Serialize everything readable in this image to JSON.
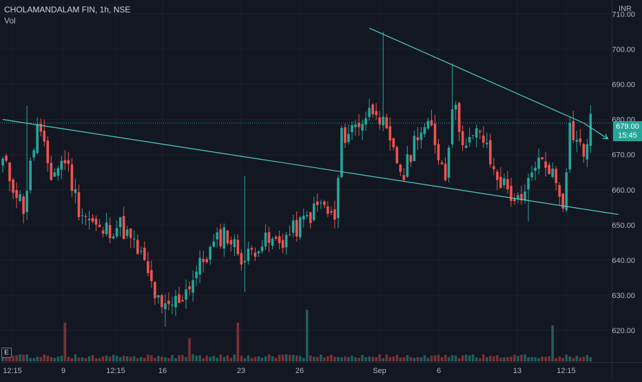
{
  "legend": {
    "symbol": "CHOLAMANDALAM FIN, 1h, NSE",
    "volume_label": "Vol"
  },
  "currency": "INR",
  "axis_icon": "E",
  "last_price": {
    "price": "679.00",
    "countdown": "15:45"
  },
  "colors": {
    "background": "#131722",
    "up": "#26a69a",
    "down": "#ef5350",
    "up_volume": "#1f5e5b",
    "down_volume": "#7a3134",
    "trendline": "#4dd0c7",
    "grid": "#1e222d",
    "axis_text": "#b2b5be"
  },
  "chart_data": {
    "type": "candlestick",
    "title": "CHOLAMANDALAM FIN, 1h, NSE",
    "y_axis": {
      "label": "INR",
      "range": [
        611,
        714
      ],
      "ticks": [
        "620.00",
        "630.00",
        "640.00",
        "650.00",
        "660.00",
        "670.00",
        "680.00",
        "690.00",
        "700.00",
        "710.00"
      ],
      "side": "right"
    },
    "x_axis": {
      "tick_labels": [
        "12:15",
        "9",
        "12:15",
        "16",
        "23",
        "26",
        "Sep",
        "6",
        "13",
        "12:15"
      ]
    },
    "grid": true,
    "series": [
      {
        "name": "price",
        "waypoints": [
          {
            "bar": 0,
            "price": 668
          },
          {
            "bar": 6,
            "price": 655
          },
          {
            "bar": 10,
            "price": 678
          },
          {
            "bar": 14,
            "price": 664
          },
          {
            "bar": 18,
            "price": 669
          },
          {
            "bar": 22,
            "price": 655
          },
          {
            "bar": 28,
            "price": 648
          },
          {
            "bar": 34,
            "price": 650
          },
          {
            "bar": 40,
            "price": 641
          },
          {
            "bar": 46,
            "price": 625
          },
          {
            "bar": 52,
            "price": 630
          },
          {
            "bar": 58,
            "price": 640
          },
          {
            "bar": 64,
            "price": 648
          },
          {
            "bar": 70,
            "price": 640
          },
          {
            "bar": 74,
            "price": 645
          },
          {
            "bar": 80,
            "price": 645
          },
          {
            "bar": 86,
            "price": 650
          },
          {
            "bar": 92,
            "price": 656
          },
          {
            "bar": 96,
            "price": 651
          },
          {
            "bar": 98,
            "price": 675
          },
          {
            "bar": 104,
            "price": 680
          },
          {
            "bar": 108,
            "price": 684
          },
          {
            "bar": 112,
            "price": 672
          },
          {
            "bar": 116,
            "price": 664
          },
          {
            "bar": 120,
            "price": 677
          },
          {
            "bar": 124,
            "price": 677
          },
          {
            "bar": 128,
            "price": 664
          },
          {
            "bar": 130,
            "price": 685
          },
          {
            "bar": 134,
            "price": 672
          },
          {
            "bar": 138,
            "price": 677
          },
          {
            "bar": 142,
            "price": 665
          },
          {
            "bar": 146,
            "price": 660
          },
          {
            "bar": 150,
            "price": 655
          },
          {
            "bar": 154,
            "price": 668
          },
          {
            "bar": 158,
            "price": 667
          },
          {
            "bar": 162,
            "price": 657
          },
          {
            "bar": 164,
            "price": 678
          },
          {
            "bar": 168,
            "price": 670
          },
          {
            "bar": 170,
            "price": 679
          }
        ],
        "notable_wicks": [
          {
            "bar": 7,
            "high": 684
          },
          {
            "bar": 12,
            "high": 680
          },
          {
            "bar": 47,
            "low": 621
          },
          {
            "bar": 70,
            "high": 664,
            "low": 631
          },
          {
            "bar": 110,
            "high": 705
          },
          {
            "bar": 130,
            "high": 696
          },
          {
            "bar": 152,
            "low": 651
          }
        ]
      },
      {
        "name": "volume",
        "spikes": [
          {
            "bar": 18,
            "relative": 0.75
          },
          {
            "bar": 54,
            "relative": 0.45
          },
          {
            "bar": 68,
            "relative": 0.75
          },
          {
            "bar": 88,
            "relative": 1.0
          },
          {
            "bar": 159,
            "relative": 0.7
          }
        ]
      }
    ],
    "trendlines": [
      {
        "from": {
          "bar": 0,
          "price": 680
        },
        "to": {
          "bar": 178,
          "price": 653
        }
      },
      {
        "from": {
          "bar": 106,
          "price": 706
        },
        "to": {
          "bar": 168,
          "price": 679
        }
      },
      {
        "from": {
          "bar": 168,
          "price": 679
        },
        "to": {
          "bar": 175,
          "price": 674.5
        },
        "arrow": true
      }
    ],
    "last_price_line": 679
  }
}
